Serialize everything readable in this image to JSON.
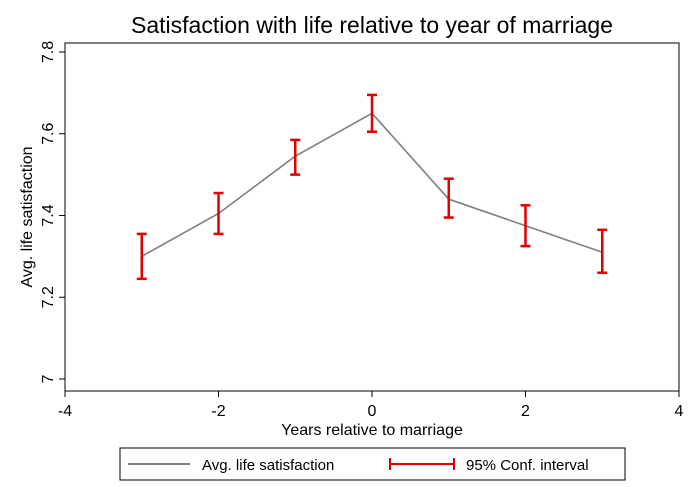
{
  "chart_data": {
    "type": "line",
    "title": "Satisfaction with life relative to year of marriage",
    "xlabel": "Years relative to marriage",
    "ylabel": "Avg. life satisfaction",
    "xlim": [
      -4,
      4
    ],
    "ylim": [
      7,
      7.8
    ],
    "xticks": [
      -4,
      -2,
      0,
      2,
      4
    ],
    "yticks": [
      7,
      7.2,
      7.4,
      7.6,
      7.8
    ],
    "xtick_labels": [
      "-4",
      "-2",
      "0",
      "2",
      "4"
    ],
    "ytick_labels": [
      "7",
      "7.2",
      "7.4",
      "7.6",
      "7.8"
    ],
    "grid": false,
    "legend_position": "bottom",
    "series": [
      {
        "name": "Avg. life satisfaction",
        "color": "#7f7f7f",
        "x": [
          -3,
          -2,
          -1,
          0,
          1,
          2,
          3
        ],
        "values": [
          7.3,
          7.405,
          7.545,
          7.65,
          7.44,
          7.375,
          7.31
        ]
      },
      {
        "name": "95% Conf. interval",
        "color": "#e00000",
        "x": [
          -3,
          -2,
          -1,
          0,
          1,
          2,
          3
        ],
        "lower": [
          7.245,
          7.355,
          7.5,
          7.605,
          7.395,
          7.325,
          7.26
        ],
        "upper": [
          7.355,
          7.455,
          7.585,
          7.695,
          7.49,
          7.425,
          7.365
        ]
      }
    ]
  }
}
